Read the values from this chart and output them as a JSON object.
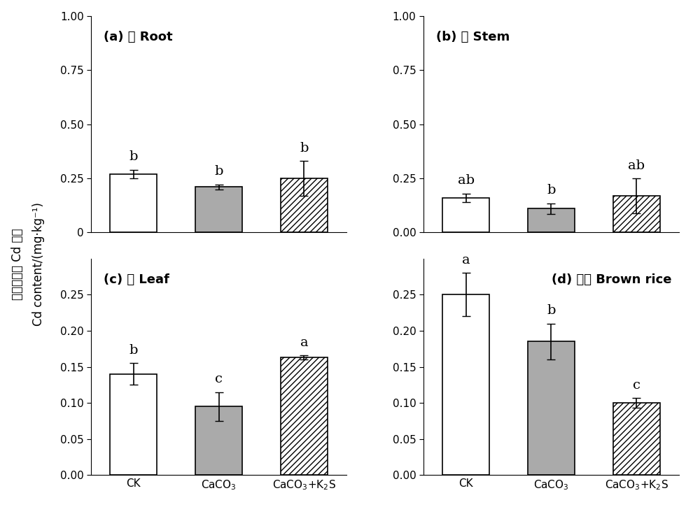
{
  "panels": [
    {
      "title": "(a) 根 Root",
      "title_loc": "left",
      "values": [
        0.27,
        0.21,
        0.25
      ],
      "errors": [
        0.02,
        0.012,
        0.08
      ],
      "labels": [
        "b",
        "b",
        "b"
      ],
      "ylim": [
        0,
        1.0
      ],
      "yticks": [
        0,
        0.25,
        0.5,
        0.75,
        1.0
      ],
      "yticklabels": [
        "0",
        "0.25",
        "0.50",
        "0.75",
        "1.00"
      ]
    },
    {
      "title": "(b) 茎 Stem",
      "title_loc": "left",
      "values": [
        0.16,
        0.11,
        0.17
      ],
      "errors": [
        0.02,
        0.025,
        0.08
      ],
      "labels": [
        "ab",
        "b",
        "ab"
      ],
      "ylim": [
        0,
        1.0
      ],
      "yticks": [
        0.0,
        0.25,
        0.5,
        0.75,
        1.0
      ],
      "yticklabels": [
        "0.00",
        "0.25",
        "0.50",
        "0.75",
        "1.00"
      ]
    },
    {
      "title": "(c) 叶 Leaf",
      "title_loc": "left",
      "values": [
        0.14,
        0.095,
        0.163
      ],
      "errors": [
        0.015,
        0.02,
        0.003
      ],
      "labels": [
        "b",
        "c",
        "a"
      ],
      "ylim": [
        0,
        0.3
      ],
      "yticks": [
        0.0,
        0.05,
        0.1,
        0.15,
        0.2,
        0.25
      ],
      "yticklabels": [
        "0.00",
        "0.05",
        "0.10",
        "0.15",
        "0.20",
        "0.25"
      ]
    },
    {
      "title": "(d) 精米 Brown rice",
      "title_loc": "right",
      "values": [
        0.25,
        0.185,
        0.1
      ],
      "errors": [
        0.03,
        0.025,
        0.007
      ],
      "labels": [
        "a",
        "b",
        "c"
      ],
      "ylim": [
        0,
        0.3
      ],
      "yticks": [
        0.0,
        0.05,
        0.1,
        0.15,
        0.2,
        0.25
      ],
      "yticklabels": [
        "0.00",
        "0.05",
        "0.10",
        "0.15",
        "0.20",
        "0.25"
      ]
    }
  ],
  "categories": [
    "CK",
    "CaCO$_3$",
    "CaCO$_3$+K$_2$S"
  ],
  "bar_colors": [
    "white",
    "#aaaaaa",
    "white"
  ],
  "bar_hatches": [
    null,
    null,
    "////"
  ],
  "bar_edgecolor": "black",
  "ylabel_chinese": "水稺各部位 Cd 含量",
  "ylabel_english": "Cd content/(mg·kg⁻¹)",
  "title_fontsize": 13,
  "tick_fontsize": 11,
  "label_fontsize": 12,
  "annotation_fontsize": 14,
  "bar_width": 0.55
}
